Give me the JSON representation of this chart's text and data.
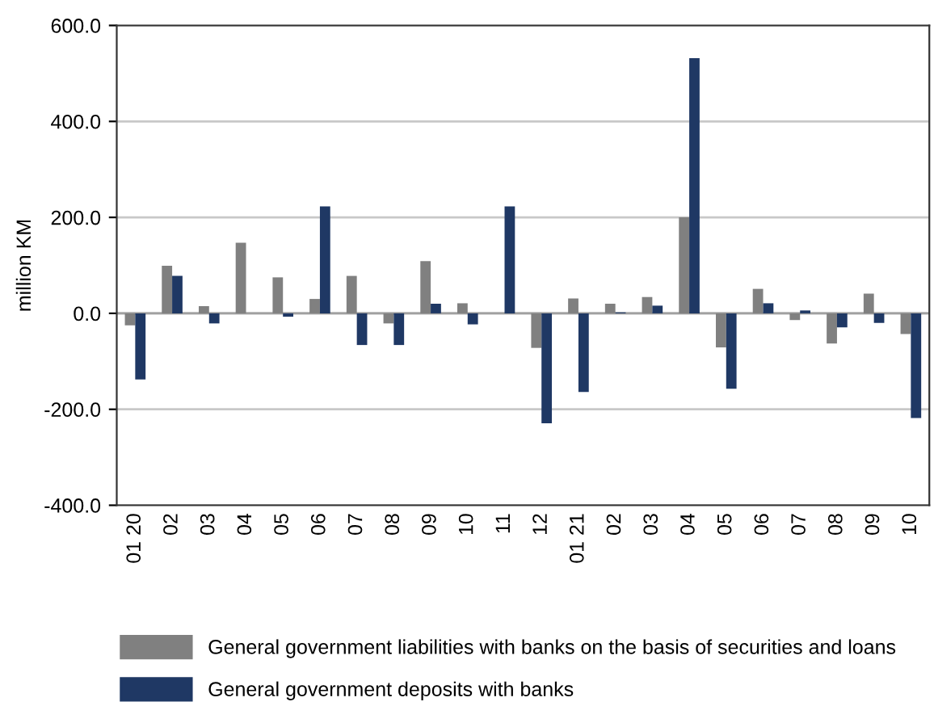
{
  "chart_data": {
    "type": "bar",
    "ylabel": "million KM",
    "categories": [
      "01 20",
      "02",
      "03",
      "04",
      "05",
      "06",
      "07",
      "08",
      "09",
      "10",
      "11",
      "12",
      "01 21",
      "02",
      "03",
      "04",
      "05",
      "06",
      "07",
      "08",
      "09",
      "10"
    ],
    "series": [
      {
        "name": "General government liabilities with banks on the basis of securities and loans",
        "color": "#808080",
        "values": [
          -25,
          99,
          15,
          147,
          75,
          30,
          78,
          -21,
          109,
          21,
          0,
          -72,
          31,
          20,
          34,
          200,
          -71,
          51,
          -14,
          -63,
          41,
          -43
        ]
      },
      {
        "name": "General government deposits with banks",
        "color": "#1f3864",
        "values": [
          -138,
          78,
          -21,
          0,
          -7,
          223,
          -66,
          -66,
          20,
          -23,
          223,
          -229,
          -164,
          2,
          16,
          532,
          -157,
          21,
          6,
          -29,
          -20,
          -218
        ]
      }
    ],
    "ylim": [
      -400,
      600
    ],
    "yticks": [
      {
        "value": -400,
        "label": "-400.0"
      },
      {
        "value": -200,
        "label": "-200.0"
      },
      {
        "value": 0,
        "label": "0.0"
      },
      {
        "value": 200,
        "label": "200.0"
      },
      {
        "value": 400,
        "label": "400.0"
      },
      {
        "value": 600,
        "label": "600.0"
      }
    ],
    "grid": "y",
    "legend": "bottom"
  }
}
